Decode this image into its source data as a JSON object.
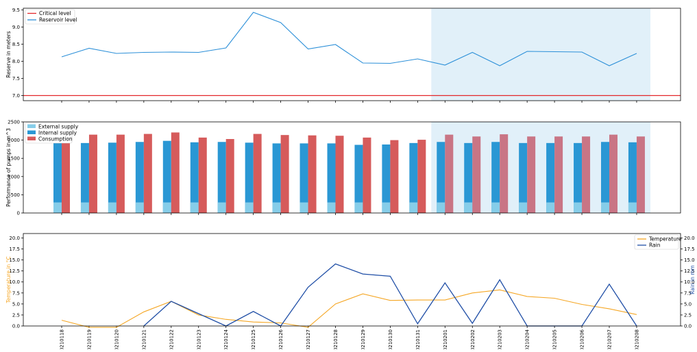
{
  "chart_data": [
    {
      "type": "line",
      "dates": [
        "20210118",
        "20210119",
        "20210120",
        "20210121",
        "20210122",
        "20210123",
        "20210124",
        "20210125",
        "20210126",
        "20210127",
        "20210128",
        "20210129",
        "20210130",
        "20210131",
        "20210201",
        "20210202",
        "20210203",
        "20210204",
        "20210205",
        "20210206",
        "20210207",
        "20210208"
      ],
      "ylabel": "Reserve in meters",
      "ylim": [
        6.85,
        9.55
      ],
      "yticks": [
        7.0,
        7.5,
        8.0,
        8.5,
        9.0,
        9.5
      ],
      "ytick_labels": [
        "7.0",
        "7.5",
        "8.0",
        "8.5",
        "9.0",
        "9.5"
      ],
      "critical_level": 7.0,
      "series": [
        {
          "name": "Critical level",
          "color": "#e3262a"
        },
        {
          "name": "Reservoir level",
          "color": "#2b8fd8",
          "values": [
            8.13,
            8.38,
            8.23,
            8.26,
            8.27,
            8.26,
            8.39,
            9.43,
            9.13,
            8.36,
            8.49,
            7.95,
            7.94,
            8.07,
            7.89,
            8.26,
            7.87,
            8.29,
            8.28,
            8.27,
            7.87,
            8.23
          ]
        }
      ],
      "forecast_shade": {
        "from_date": "20210201",
        "color": "#e1f0f9"
      },
      "legend": "top-left"
    },
    {
      "type": "bar",
      "dates": [
        "20210118",
        "20210119",
        "20210120",
        "20210121",
        "20210122",
        "20210123",
        "20210124",
        "20210125",
        "20210126",
        "20210127",
        "20210128",
        "20210129",
        "20210130",
        "20210131",
        "20210201",
        "20210202",
        "20210203",
        "20210204",
        "20210205",
        "20210206",
        "20210207",
        "20210208"
      ],
      "ylabel": "Performance of pumps in m^3",
      "ylim": [
        0,
        2500
      ],
      "yticks": [
        0,
        500,
        1000,
        1500,
        2000,
        2500
      ],
      "ytick_labels": [
        "0",
        "500",
        "1000",
        "1500",
        "2000",
        "2500"
      ],
      "series": [
        {
          "name": "External supply",
          "color": "#86cde9",
          "values": [
            290,
            290,
            290,
            290,
            290,
            290,
            290,
            290,
            290,
            290,
            290,
            290,
            290,
            290,
            290,
            290,
            290,
            290,
            290,
            290,
            290,
            290
          ]
        },
        {
          "name": "Internal supply",
          "color": "#2a97d4",
          "values": [
            1930,
            1920,
            1930,
            1950,
            1980,
            1940,
            1950,
            1930,
            1910,
            1910,
            1910,
            1870,
            1880,
            1920,
            1950,
            1920,
            1950,
            1920,
            1920,
            1920,
            1950,
            1940
          ]
        },
        {
          "name": "Consumption",
          "color": "#d65b5b",
          "forecast_color": "#c97585",
          "values": [
            2120,
            2150,
            2150,
            2170,
            2210,
            2070,
            2030,
            2170,
            2140,
            2130,
            2120,
            2070,
            2000,
            2010,
            2150,
            2100,
            2160,
            2100,
            2100,
            2100,
            2150,
            2100
          ]
        }
      ],
      "forecast_shade": {
        "from_date": "20210201",
        "color": "#e1f0f9"
      },
      "legend": "top-left"
    },
    {
      "type": "line",
      "dates": [
        "20210118",
        "20210119",
        "20210120",
        "20210121",
        "20210122",
        "20210123",
        "20210124",
        "20210125",
        "20210126",
        "20210127",
        "20210128",
        "20210129",
        "20210130",
        "20210131",
        "20210201",
        "20210202",
        "20210203",
        "20210204",
        "20210205",
        "20210206",
        "20210207",
        "20210208"
      ],
      "ylabel_left": "Temperature in °C",
      "ylabel_right": "Rain in mm",
      "ylim": [
        0,
        21
      ],
      "yticks": [
        0.0,
        2.5,
        5.0,
        7.5,
        10.0,
        12.5,
        15.0,
        17.5,
        20.0
      ],
      "ytick_labels": [
        "0.0",
        "2.5",
        "5.0",
        "7.5",
        "10.0",
        "12.5",
        "15.0",
        "17.5",
        "20.0"
      ],
      "series": [
        {
          "name": "Temperature",
          "color": "#f5a623",
          "axis": "left",
          "values": [
            1.3,
            -0.3,
            -0.3,
            3.2,
            5.6,
            2.5,
            1.5,
            0.9,
            0.7,
            -0.3,
            5.0,
            7.3,
            5.8,
            5.9,
            5.9,
            7.5,
            8.2,
            6.7,
            6.3,
            4.9,
            3.9,
            2.6
          ]
        },
        {
          "name": "Rain",
          "color": "#1f4ea6",
          "axis": "right",
          "values": [
            null,
            null,
            null,
            0.0,
            5.6,
            2.8,
            0.0,
            3.3,
            0.0,
            8.8,
            14.1,
            11.8,
            11.3,
            0.5,
            9.8,
            0.6,
            10.5,
            0.0,
            0.0,
            0.0,
            9.5,
            0.0
          ]
        }
      ],
      "legend": "top-right"
    }
  ]
}
